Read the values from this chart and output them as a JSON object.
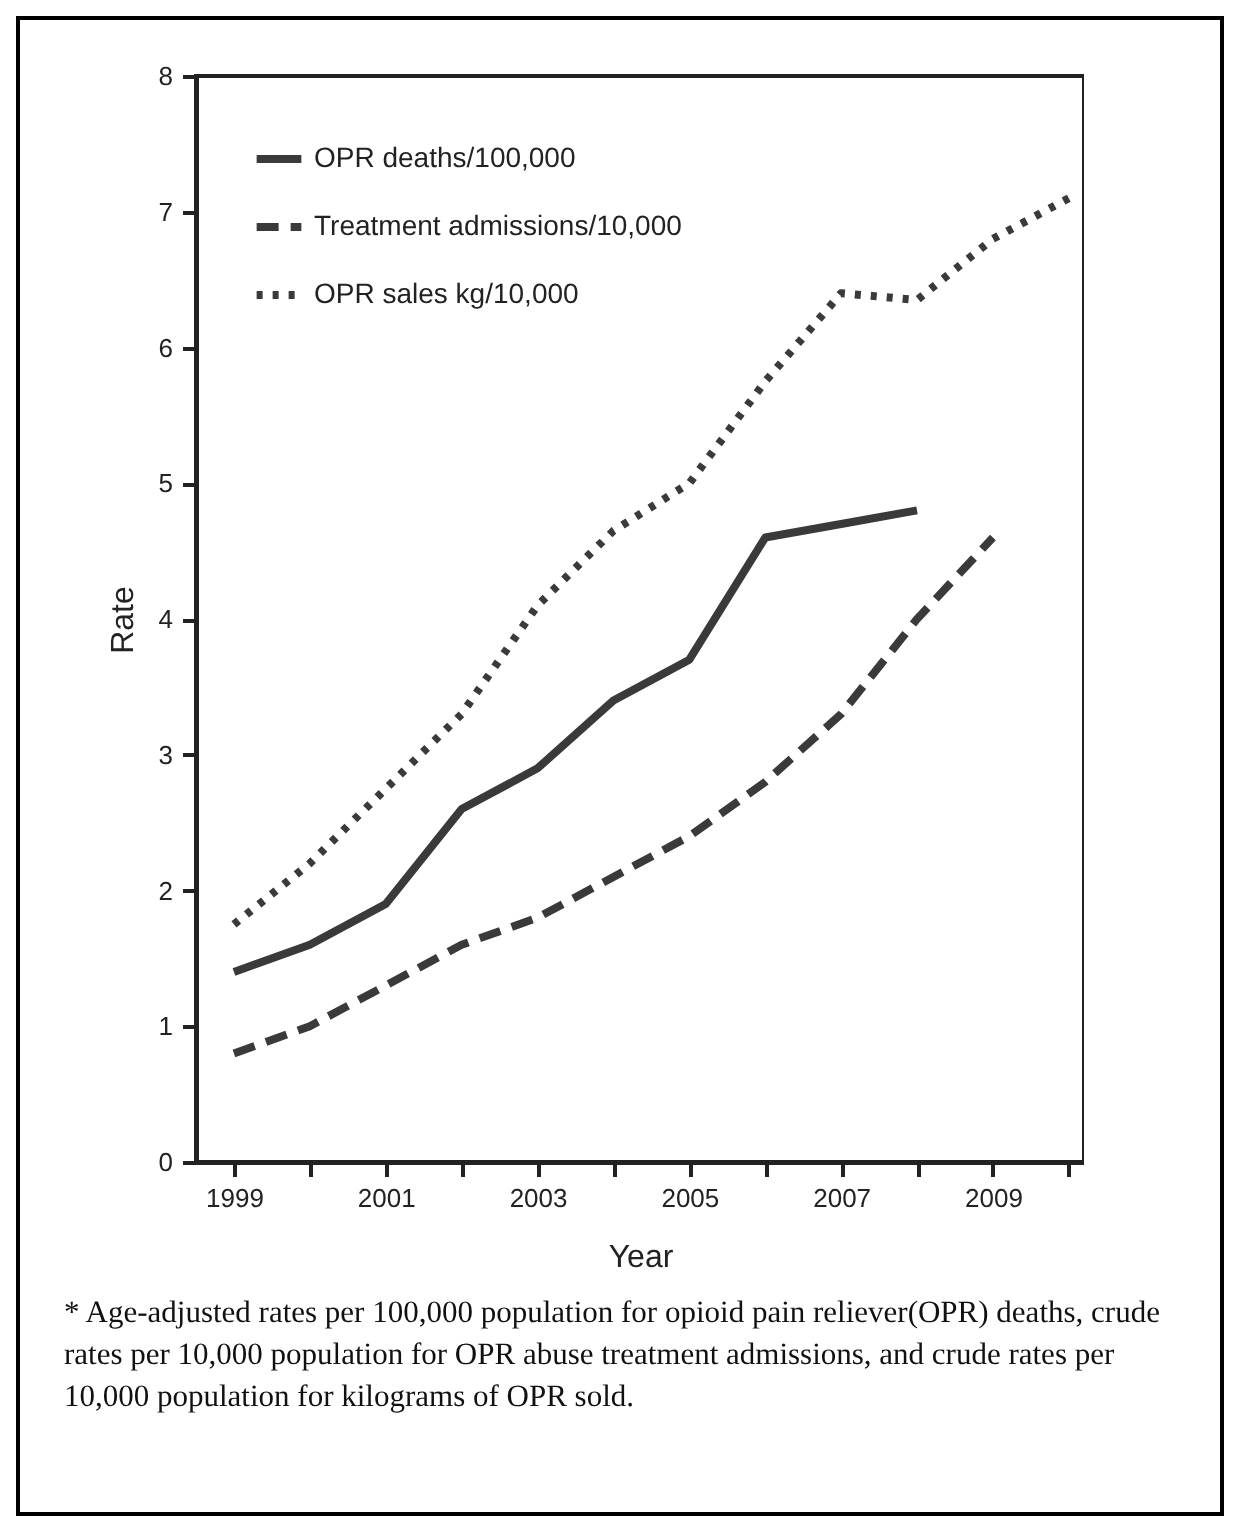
{
  "chart_data": {
    "type": "line",
    "xlabel": "Year",
    "ylabel": "Rate",
    "x": [
      1999,
      2000,
      2001,
      2002,
      2003,
      2004,
      2005,
      2006,
      2007,
      2008,
      2009,
      2010
    ],
    "series": [
      {
        "name": "OPR deaths/100,000",
        "color": "#3a3a3a",
        "line_style": "solid",
        "values": [
          1.4,
          1.6,
          1.9,
          2.6,
          2.9,
          3.4,
          3.7,
          4.6,
          4.7,
          4.8,
          null,
          null
        ]
      },
      {
        "name": "Treatment admissions/10,000",
        "color": "#3a3a3a",
        "line_style": "dashed",
        "values": [
          0.8,
          1.0,
          1.3,
          1.6,
          1.8,
          2.1,
          2.4,
          2.8,
          3.3,
          4.0,
          4.6,
          null
        ]
      },
      {
        "name": "OPR sales kg/10,000",
        "color": "#3a3a3a",
        "line_style": "dotted",
        "values": [
          1.75,
          2.2,
          2.75,
          3.3,
          4.1,
          4.65,
          5.0,
          5.75,
          6.4,
          6.35,
          6.8,
          7.1
        ]
      }
    ],
    "xlim": [
      1998.5,
      2010.2
    ],
    "xticks": [
      1999,
      {
        "value": 2000,
        "label": null
      },
      2001,
      {
        "value": 2002,
        "label": null
      },
      2003,
      {
        "value": 2004,
        "label": null
      },
      2005,
      {
        "value": 2006,
        "label": null
      },
      2007,
      {
        "value": 2008,
        "label": null
      },
      2009,
      {
        "value": 2010,
        "label": null
      }
    ],
    "ylim": [
      0,
      8
    ],
    "yticks": [
      0,
      1,
      2,
      3,
      4,
      5,
      6,
      7,
      8
    ],
    "grid": false,
    "legend": "top left",
    "marker": "none",
    "annotations": [
      "* Age-adjusted rates per 100,000 population for opioid pain reliever(OPR) deaths, crude rates per 10,000 population for OPR abuse treatment admissions, and crude rates per 10,000 population for kilograms of OPR sold."
    ]
  }
}
